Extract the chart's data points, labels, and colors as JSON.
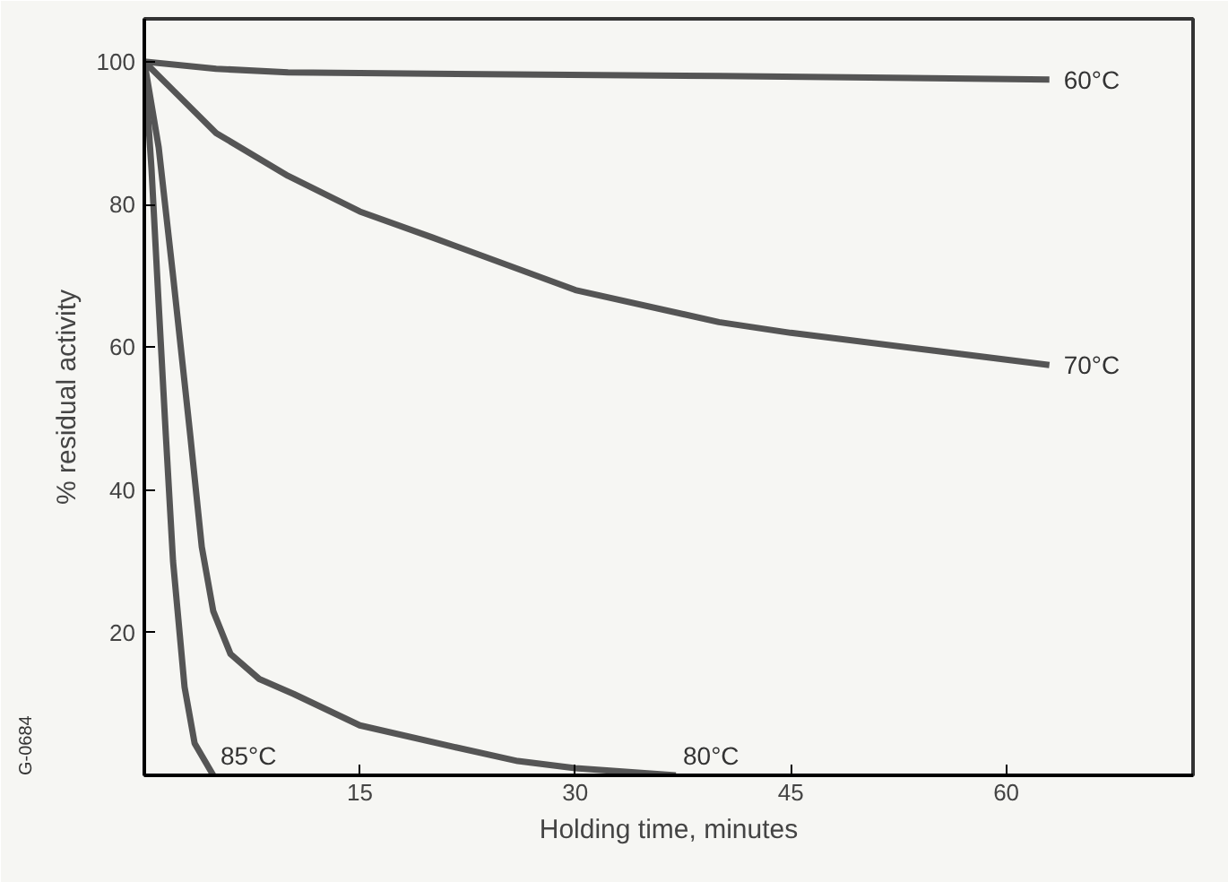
{
  "chart_data": {
    "type": "line",
    "xlabel": "Holding time, minutes",
    "ylabel": "% residual activity",
    "xlim": [
      0,
      73
    ],
    "ylim": [
      0,
      106
    ],
    "xticks": [
      15,
      30,
      45,
      60
    ],
    "yticks": [
      20,
      40,
      60,
      80,
      100
    ],
    "grid": false,
    "marker": "none",
    "line_style": "solid",
    "series": [
      {
        "name": "60°C",
        "color": "#555555",
        "x": [
          0,
          5,
          10,
          20,
          40,
          63
        ],
        "values": [
          100,
          99,
          98.5,
          98.3,
          98,
          97.5
        ]
      },
      {
        "name": "70°C",
        "color": "#555555",
        "x": [
          0,
          2,
          5,
          10,
          15,
          20,
          30,
          40,
          45,
          55,
          63
        ],
        "values": [
          100,
          96,
          90,
          84,
          79,
          75.4,
          68,
          63.5,
          62,
          59.5,
          57.5
        ]
      },
      {
        "name": "80°C",
        "color": "#555555",
        "x": [
          0,
          1,
          2,
          3.2,
          4,
          4.8,
          6,
          8,
          10.4,
          15,
          21.5,
          26,
          30,
          37
        ],
        "values": [
          100,
          88,
          70,
          47.6,
          32,
          23,
          17,
          13.5,
          11.4,
          7,
          4,
          2,
          1,
          0
        ]
      },
      {
        "name": "85°C",
        "color": "#555555",
        "x": [
          0,
          0.5,
          1,
          1.5,
          2,
          2.8,
          3.5,
          4.8
        ],
        "values": [
          100,
          85,
          66,
          47.6,
          30,
          12.4,
          4.5,
          0
        ]
      }
    ],
    "annotations": [
      "G-0684"
    ]
  }
}
